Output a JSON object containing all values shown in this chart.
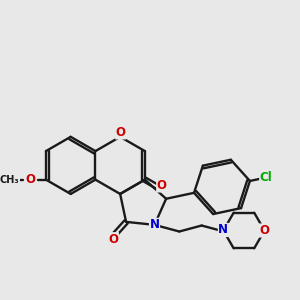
{
  "bg_color": "#e8e8e8",
  "bond_color": "#1a1a1a",
  "bond_lw": 1.7,
  "O_color": "#cc0000",
  "N_color": "#0000cc",
  "Cl_color": "#00aa00",
  "C_color": "#1a1a1a",
  "font_size": 8.5,
  "xlim": [
    -2.3,
    2.8
  ],
  "ylim": [
    -2.0,
    2.2
  ]
}
